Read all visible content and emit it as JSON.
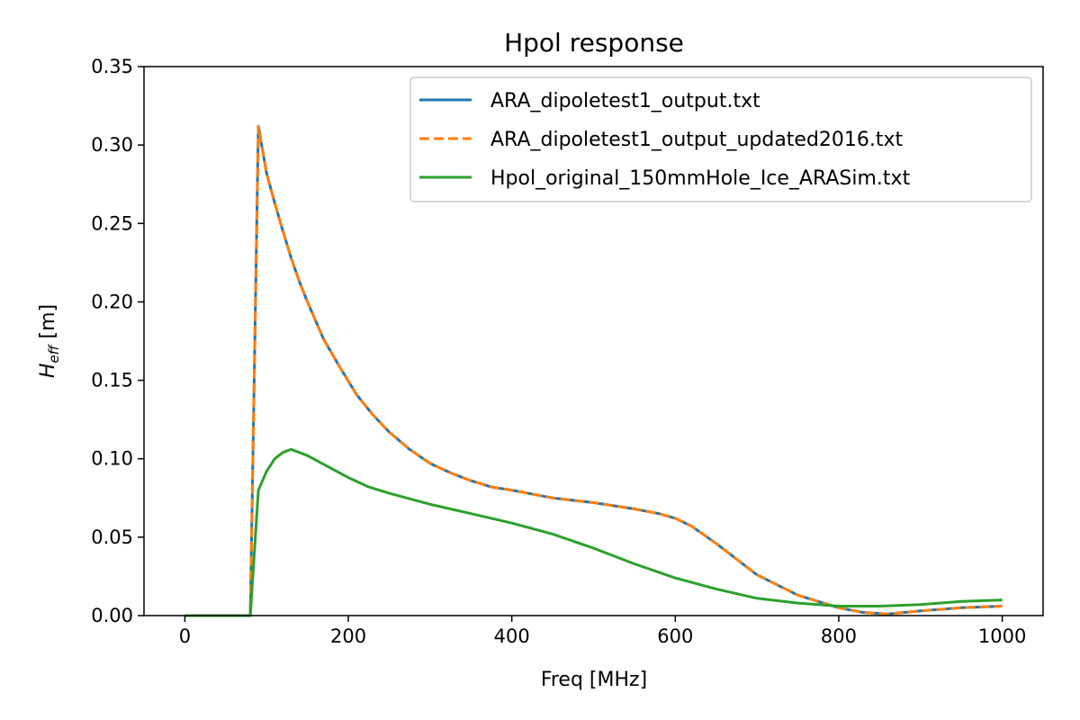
{
  "chart_data": {
    "type": "line",
    "title": "Hpol response",
    "xlabel": "Freq [MHz]",
    "ylabel": {
      "main": "H",
      "sub": "eff",
      "unit": " [m]"
    },
    "xlim": [
      -50,
      1050
    ],
    "ylim": [
      0.0,
      0.35
    ],
    "xticks": [
      {
        "value": 0,
        "label": "0"
      },
      {
        "value": 200,
        "label": "200"
      },
      {
        "value": 400,
        "label": "400"
      },
      {
        "value": 600,
        "label": "600"
      },
      {
        "value": 800,
        "label": "800"
      },
      {
        "value": 1000,
        "label": "1000"
      }
    ],
    "yticks": [
      {
        "value": 0.0,
        "label": "0.00"
      },
      {
        "value": 0.05,
        "label": "0.05"
      },
      {
        "value": 0.1,
        "label": "0.10"
      },
      {
        "value": 0.15,
        "label": "0.15"
      },
      {
        "value": 0.2,
        "label": "0.20"
      },
      {
        "value": 0.25,
        "label": "0.25"
      },
      {
        "value": 0.3,
        "label": "0.30"
      },
      {
        "value": 0.35,
        "label": "0.35"
      }
    ],
    "grid": false,
    "legend_position": "top-right",
    "series": [
      {
        "name": "ARA_dipoletest1_output.txt",
        "color": "#1f77b4",
        "style": "solid",
        "x": [
          0,
          80,
          90,
          100,
          110,
          120,
          130,
          140,
          150,
          170,
          190,
          210,
          230,
          250,
          275,
          300,
          325,
          350,
          375,
          400,
          450,
          500,
          550,
          580,
          600,
          620,
          650,
          700,
          750,
          800,
          830,
          860,
          880,
          900,
          950,
          1000
        ],
        "y": [
          0.0,
          0.0,
          0.312,
          0.282,
          0.263,
          0.245,
          0.228,
          0.213,
          0.2,
          0.176,
          0.158,
          0.141,
          0.128,
          0.117,
          0.106,
          0.097,
          0.091,
          0.086,
          0.082,
          0.08,
          0.075,
          0.072,
          0.068,
          0.065,
          0.062,
          0.057,
          0.046,
          0.026,
          0.013,
          0.005,
          0.002,
          0.001,
          0.002,
          0.003,
          0.005,
          0.006
        ]
      },
      {
        "name": "ARA_dipoletest1_output_updated2016.txt",
        "color": "#ff7f0e",
        "style": "dashed",
        "x": [
          0,
          80,
          90,
          100,
          110,
          120,
          130,
          140,
          150,
          170,
          190,
          210,
          230,
          250,
          275,
          300,
          325,
          350,
          375,
          400,
          450,
          500,
          550,
          580,
          600,
          620,
          650,
          700,
          750,
          800,
          830,
          860,
          880,
          900,
          950,
          1000
        ],
        "y": [
          0.0,
          0.0,
          0.312,
          0.282,
          0.263,
          0.245,
          0.228,
          0.213,
          0.2,
          0.176,
          0.158,
          0.141,
          0.128,
          0.117,
          0.106,
          0.097,
          0.091,
          0.086,
          0.082,
          0.08,
          0.075,
          0.072,
          0.068,
          0.065,
          0.062,
          0.057,
          0.046,
          0.026,
          0.013,
          0.005,
          0.002,
          0.001,
          0.002,
          0.003,
          0.005,
          0.006
        ]
      },
      {
        "name": "Hpol_original_150mmHole_Ice_ARASim.txt",
        "color": "#2ca02c",
        "style": "solid",
        "x": [
          0,
          80,
          90,
          100,
          110,
          120,
          130,
          140,
          150,
          175,
          200,
          225,
          250,
          300,
          350,
          400,
          450,
          500,
          550,
          600,
          650,
          700,
          750,
          800,
          850,
          900,
          950,
          1000
        ],
        "y": [
          0.0,
          0.0,
          0.08,
          0.092,
          0.1,
          0.104,
          0.106,
          0.104,
          0.102,
          0.095,
          0.088,
          0.082,
          0.078,
          0.071,
          0.065,
          0.059,
          0.052,
          0.043,
          0.033,
          0.024,
          0.017,
          0.011,
          0.008,
          0.006,
          0.006,
          0.007,
          0.009,
          0.01
        ]
      }
    ]
  }
}
